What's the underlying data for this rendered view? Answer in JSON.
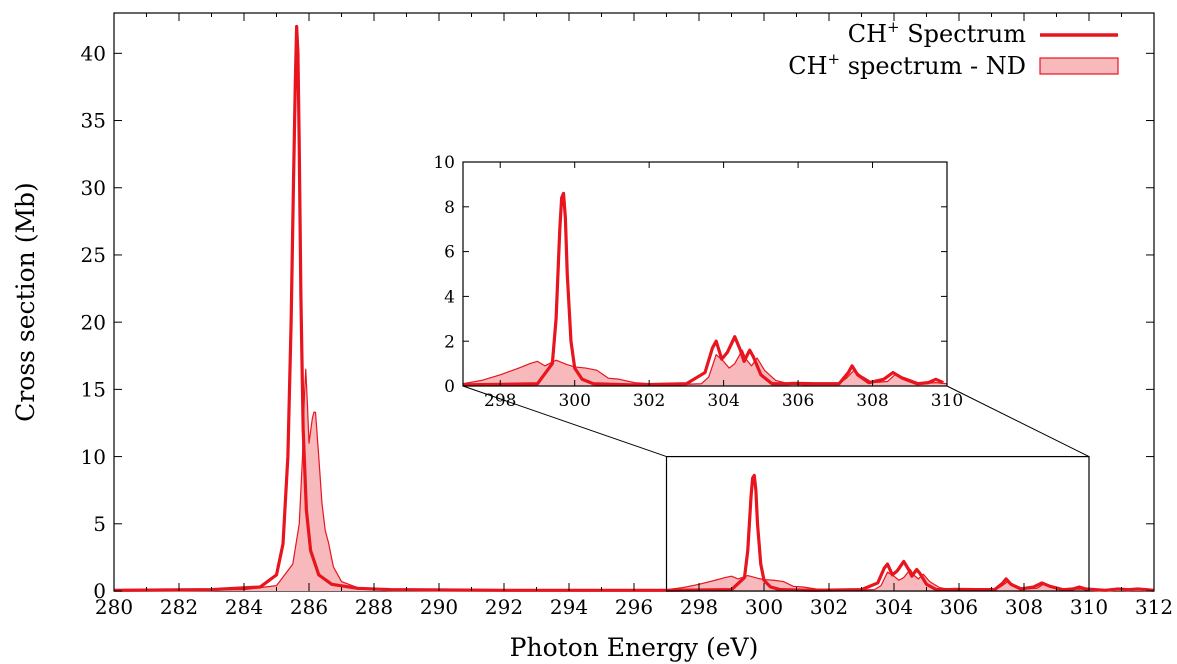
{
  "colors": {
    "line": "#e8141e",
    "fill": "#f7b9bc",
    "axis": "#000000",
    "background": "#ffffff"
  },
  "chart_data": [
    {
      "type": "area",
      "panel": "main",
      "xlabel": "Photon Energy (eV)",
      "ylabel": "Cross section (Mb)",
      "xlim": [
        280,
        312
      ],
      "ylim": [
        0,
        43
      ],
      "xticks": [
        "280",
        "282",
        "284",
        "286",
        "288",
        "290",
        "292",
        "294",
        "296",
        "298",
        "300",
        "302",
        "304",
        "306",
        "308",
        "310",
        "312"
      ],
      "yticks": [
        "0",
        "5",
        "10",
        "15",
        "20",
        "25",
        "30",
        "35",
        "40"
      ],
      "grid": false,
      "legend": {
        "placement": "top-right",
        "entries": [
          {
            "label": "CH+ Spectrum",
            "base": "CH",
            "sup": "+",
            "rest": " Spectrum",
            "style": "line"
          },
          {
            "label": "CH+ spectrum - ND",
            "base": "CH",
            "sup": "+",
            "rest": " spectrum - ND",
            "style": "filled"
          }
        ]
      },
      "series": [
        {
          "name": "CH+ Spectrum",
          "style": "line",
          "x": [
            280.0,
            283.0,
            284.5,
            285.0,
            285.2,
            285.35,
            285.45,
            285.52,
            285.58,
            285.62,
            285.66,
            285.7,
            285.75,
            285.82,
            285.92,
            286.05,
            286.3,
            286.7,
            287.5,
            288.5,
            292.0,
            296.0,
            297.0,
            299.0,
            299.4,
            299.5,
            299.6,
            299.65,
            299.7,
            299.75,
            299.8,
            299.9,
            300.0,
            300.2,
            300.5,
            301.5,
            303.0,
            303.5,
            303.7,
            303.8,
            303.95,
            304.1,
            304.3,
            304.45,
            304.55,
            304.7,
            304.8,
            305.0,
            305.3,
            305.7,
            305.9,
            306.5,
            307.1,
            307.35,
            307.45,
            307.6,
            307.9,
            308.3,
            308.55,
            308.8,
            309.2,
            309.5,
            309.7,
            309.9,
            310.5,
            310.9,
            311.2,
            311.5,
            312.0
          ],
          "y": [
            0.05,
            0.1,
            0.3,
            1.2,
            3.5,
            10.0,
            20.0,
            30.0,
            38.0,
            42.0,
            40.0,
            33.0,
            22.0,
            12.0,
            6.0,
            3.0,
            1.2,
            0.5,
            0.2,
            0.1,
            0.05,
            0.05,
            0.05,
            0.1,
            1.0,
            3.0,
            7.0,
            8.4,
            8.6,
            7.5,
            5.0,
            2.0,
            0.8,
            0.3,
            0.1,
            0.05,
            0.1,
            0.6,
            1.7,
            2.0,
            1.2,
            1.5,
            2.2,
            1.6,
            1.1,
            1.6,
            1.3,
            0.5,
            0.1,
            0.1,
            0.12,
            0.1,
            0.1,
            0.6,
            0.9,
            0.5,
            0.15,
            0.3,
            0.6,
            0.35,
            0.1,
            0.15,
            0.3,
            0.15,
            0.05,
            0.15,
            0.1,
            0.15,
            0.05
          ]
        },
        {
          "name": "CH+ spectrum - ND",
          "style": "filled",
          "x": [
            280.0,
            284.0,
            285.0,
            285.5,
            285.7,
            285.8,
            285.85,
            285.9,
            285.95,
            286.0,
            286.1,
            286.15,
            286.2,
            286.3,
            286.4,
            286.5,
            286.6,
            286.75,
            287.0,
            287.5,
            288.5,
            292.0,
            296.5,
            297.0,
            297.5,
            298.0,
            298.5,
            298.8,
            299.0,
            299.2,
            299.5,
            299.8,
            300.0,
            300.3,
            300.6,
            300.9,
            301.2,
            301.6,
            302.5,
            303.4,
            303.6,
            303.8,
            304.0,
            304.15,
            304.3,
            304.5,
            304.6,
            304.75,
            304.9,
            305.1,
            305.4,
            305.8,
            306.2,
            307.1,
            307.3,
            307.5,
            307.7,
            308.0,
            308.4,
            308.6,
            308.9,
            309.3,
            309.7,
            310.0,
            310.5,
            311.0,
            311.5,
            312.0
          ],
          "y": [
            0.05,
            0.1,
            0.4,
            2.0,
            5.0,
            10.0,
            14.0,
            16.5,
            14.0,
            11.0,
            12.8,
            13.3,
            13.3,
            10.0,
            6.5,
            4.5,
            3.6,
            1.8,
            0.7,
            0.25,
            0.1,
            0.05,
            0.05,
            0.1,
            0.25,
            0.5,
            0.8,
            1.0,
            1.1,
            0.9,
            1.15,
            0.95,
            0.85,
            0.8,
            0.7,
            0.35,
            0.3,
            0.15,
            0.05,
            0.1,
            0.4,
            1.4,
            1.1,
            0.8,
            1.0,
            1.6,
            1.2,
            0.9,
            1.25,
            0.7,
            0.25,
            0.08,
            0.05,
            0.1,
            0.35,
            0.7,
            0.45,
            0.15,
            0.2,
            0.5,
            0.35,
            0.1,
            0.15,
            0.1,
            0.05,
            0.1,
            0.12,
            0.05
          ]
        }
      ]
    },
    {
      "type": "area",
      "panel": "inset",
      "xlim": [
        297,
        310
      ],
      "ylim": [
        0,
        10
      ],
      "xticks": [
        "298",
        "300",
        "302",
        "304",
        "306",
        "308",
        "310"
      ],
      "yticks": [
        "0",
        "2",
        "4",
        "6",
        "8",
        "10"
      ],
      "grid": false
    }
  ]
}
